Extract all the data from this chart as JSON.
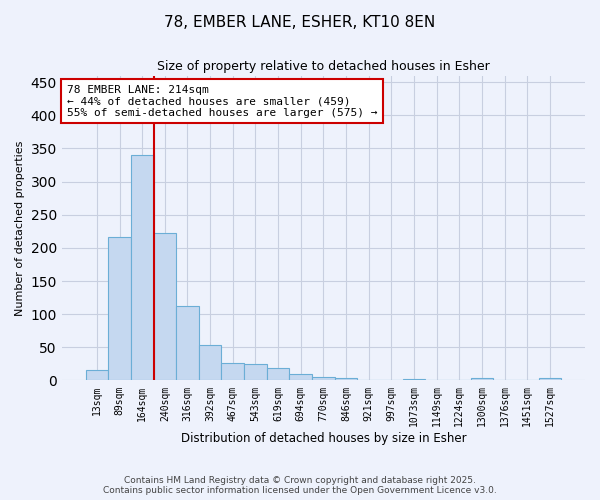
{
  "title_line1": "78, EMBER LANE, ESHER, KT10 8EN",
  "title_line2": "Size of property relative to detached houses in Esher",
  "xlabel": "Distribution of detached houses by size in Esher",
  "ylabel": "Number of detached properties",
  "bar_labels": [
    "13sqm",
    "89sqm",
    "164sqm",
    "240sqm",
    "316sqm",
    "392sqm",
    "467sqm",
    "543sqm",
    "619sqm",
    "694sqm",
    "770sqm",
    "846sqm",
    "921sqm",
    "997sqm",
    "1073sqm",
    "1149sqm",
    "1224sqm",
    "1300sqm",
    "1376sqm",
    "1451sqm",
    "1527sqm"
  ],
  "bar_values": [
    16,
    216,
    340,
    222,
    112,
    54,
    26,
    25,
    19,
    9,
    5,
    4,
    1,
    1,
    2,
    0,
    0,
    3,
    0,
    1,
    3
  ],
  "bar_color": "#c5d8f0",
  "bar_edge_color": "#6baed6",
  "ylim": [
    0,
    460
  ],
  "yticks": [
    0,
    50,
    100,
    150,
    200,
    250,
    300,
    350,
    400,
    450
  ],
  "vline_color": "#cc0000",
  "annotation_text": "78 EMBER LANE: 214sqm\n← 44% of detached houses are smaller (459)\n55% of semi-detached houses are larger (575) →",
  "annotation_box_color": "white",
  "annotation_box_edge": "#cc0000",
  "footer_line1": "Contains HM Land Registry data © Crown copyright and database right 2025.",
  "footer_line2": "Contains public sector information licensed under the Open Government Licence v3.0.",
  "background_color": "#eef2fc",
  "grid_color": "#c8cfe0"
}
